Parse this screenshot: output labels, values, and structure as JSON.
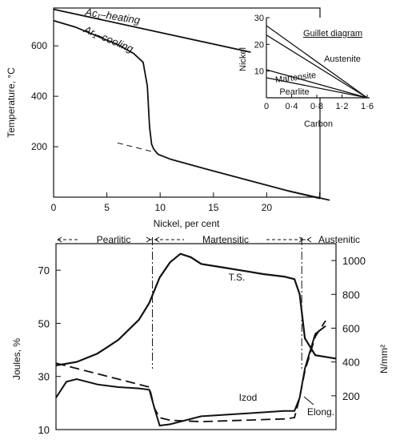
{
  "chart_data": [
    {
      "type": "line",
      "xlabel": "Nickel, per cent",
      "ylabel": "Temperature, °C",
      "xlim": [
        0,
        25
      ],
      "ylim": [
        0,
        750
      ],
      "xticks": [
        "0",
        "5",
        "10",
        "15",
        "20"
      ],
      "yticks": [
        "200",
        "400",
        "600"
      ],
      "series": [
        {
          "name": "Ac₁–heating",
          "x": [
            0,
            18.5
          ],
          "y": [
            745,
            575
          ]
        },
        {
          "name": "Ar₁–cooling",
          "x": [
            0,
            2,
            4,
            6,
            7.5,
            8.4,
            8.8,
            9.0,
            9.2,
            9.4,
            9.8,
            11,
            14,
            18,
            22,
            25
          ],
          "y": [
            700,
            675,
            640,
            605,
            570,
            535,
            440,
            280,
            210,
            190,
            170,
            150,
            115,
            70,
            25,
            -5
          ]
        },
        {
          "name": "extrapolation",
          "x": [
            6,
            9.5
          ],
          "y": [
            215,
            178
          ]
        }
      ],
      "annotations": [
        "Ac₁–heating",
        "Ar₁–cooling"
      ]
    },
    {
      "type": "line",
      "title": "Guillet diagram",
      "xlabel": "Carbon",
      "ylabel": "Nickel",
      "xlim": [
        0,
        1.6
      ],
      "ylim": [
        0,
        30
      ],
      "xticks": [
        "0",
        "0·4",
        "0·8",
        "1·2",
        "1·6"
      ],
      "yticks": [
        "10",
        "20",
        "30"
      ],
      "series": [
        {
          "x": [
            0,
            1.6
          ],
          "y": [
            27,
            0
          ]
        },
        {
          "x": [
            0,
            1.6
          ],
          "y": [
            23.5,
            0
          ]
        },
        {
          "x": [
            0,
            1.6
          ],
          "y": [
            10.5,
            0
          ]
        },
        {
          "x": [
            0,
            1.6
          ],
          "y": [
            7.5,
            0
          ]
        }
      ],
      "annotations": [
        "Austenite",
        "Martensite",
        "Pearlite"
      ]
    },
    {
      "type": "line",
      "ylabel": "Joules, %",
      "y2label": "N/mm²",
      "ylim": [
        10,
        80
      ],
      "y2lim": [
        0,
        1100
      ],
      "yticks": [
        "10",
        "30",
        "50",
        "70"
      ],
      "y2ticks": [
        "200",
        "400",
        "600",
        "800",
        "1000"
      ],
      "regions": [
        "Pearlitic",
        "Martensitic",
        "Austenitic"
      ],
      "series": [
        {
          "name": "T.S.",
          "x": [
            0,
            2,
            4,
            6,
            8,
            9,
            10,
            11,
            12,
            13,
            14,
            16,
            18,
            20,
            22,
            23,
            23.5,
            24,
            25,
            26,
            27
          ],
          "y": [
            380,
            400,
            450,
            530,
            650,
            750,
            900,
            990,
            1040,
            1020,
            980,
            960,
            940,
            920,
            905,
            890,
            800,
            540,
            440,
            430,
            420
          ]
        },
        {
          "name": "Izod",
          "x": [
            0,
            1,
            2,
            4,
            6,
            8,
            9,
            9.5,
            10,
            11,
            14,
            18,
            22,
            23,
            23.5,
            24,
            25,
            26
          ],
          "y": [
            22,
            28,
            29,
            27,
            26,
            25.5,
            25,
            18,
            11.5,
            12,
            15,
            16,
            17,
            17,
            22,
            33,
            46,
            49
          ]
        },
        {
          "name": "Elong.",
          "x": [
            0,
            2,
            4,
            6,
            8,
            9,
            9.5,
            10,
            11,
            14,
            18,
            22,
            23,
            23.5,
            24,
            25,
            26
          ],
          "y": [
            35,
            33,
            31,
            29,
            27,
            26,
            18,
            14.5,
            13.5,
            13,
            13.5,
            14,
            14.5,
            22,
            32,
            45,
            51
          ]
        }
      ],
      "annotations": [
        "T.S.",
        "Izod",
        "Elong."
      ]
    }
  ]
}
